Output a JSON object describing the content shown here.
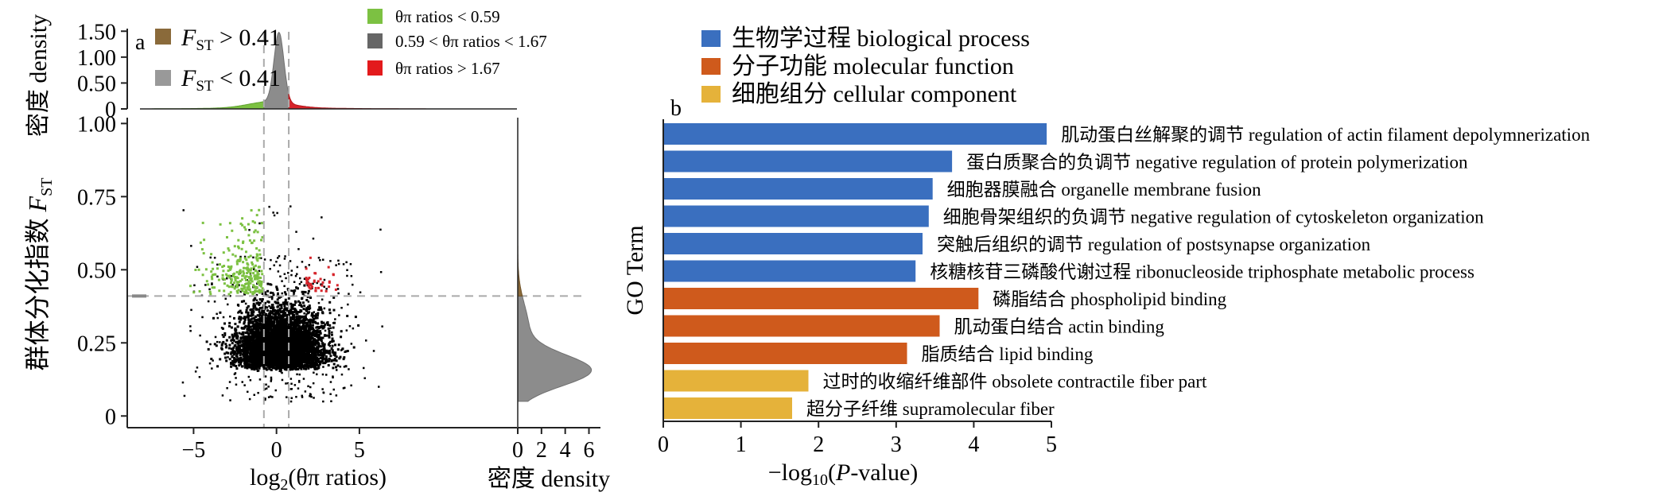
{
  "chart_data": [
    {
      "type": "scatter",
      "panel_label": "a",
      "xlabel_main": "log",
      "xlabel_sub": "2",
      "xlabel_rest": "(θπ ratios)",
      "ylabel_cn": "群体分化指数 ",
      "ylabel_f": "F",
      "ylabel_sub": "ST",
      "top_density_ylabel": "密度 density",
      "right_density_xlabel": "密度 density",
      "x_ticks": [
        "−5",
        "0",
        "5"
      ],
      "x_tick_values": [
        -5,
        0,
        5
      ],
      "y_ticks": [
        "0",
        "0.25",
        "0.50",
        "0.75",
        "1.00"
      ],
      "y_tick_values": [
        0,
        0.25,
        0.5,
        0.75,
        1.0
      ],
      "top_density_ticks": [
        "0",
        "0.50",
        "1.00",
        "1.50"
      ],
      "top_density_tick_values": [
        0,
        0.5,
        1.0,
        1.5
      ],
      "right_density_ticks": [
        "0",
        "2",
        "4",
        "6"
      ],
      "right_density_tick_values": [
        0,
        2,
        4,
        6
      ],
      "xlim": [
        -9,
        14.5
      ],
      "ylim": [
        -0.04,
        1.02
      ],
      "thresholds": {
        "fst": 0.41,
        "theta_low": -0.76,
        "theta_high": 0.74
      },
      "legend_fst": [
        {
          "label_f": "F",
          "label_sub": "ST",
          "label_rest": " > 0.41",
          "color": "#8a6a3a"
        },
        {
          "label_f": "F",
          "label_sub": "ST",
          "label_rest": " < 0.41",
          "color": "#999999"
        }
      ],
      "legend_theta": [
        {
          "label": "θπ ratios < 0.59",
          "color": "#7cc142"
        },
        {
          "label": "0.59 < θπ ratios < 1.67",
          "color": "#666666"
        },
        {
          "label": "θπ ratios > 1.67",
          "color": "#e31a1c"
        }
      ],
      "colors": {
        "bulk": "#000000",
        "green": "#7cc142",
        "red": "#d6242a",
        "density_gray": "#8c8c8c",
        "guide": "#aaaaaa"
      }
    },
    {
      "type": "bar",
      "orientation": "horizontal",
      "panel_label": "b",
      "xlabel_pre": "−log",
      "xlabel_sub": "10",
      "xlabel_mid": "(",
      "xlabel_p": "P",
      "xlabel_post": "-value)",
      "ylabel": "GO Term",
      "xlim": [
        0,
        5
      ],
      "x_ticks": [
        "0",
        "1",
        "2",
        "3",
        "4",
        "5"
      ],
      "x_tick_values": [
        0,
        1,
        2,
        3,
        4,
        5
      ],
      "legend": [
        {
          "label": "生物学过程 biological process",
          "color": "#3a6fbf"
        },
        {
          "label": "分子功能 molecular function",
          "color": "#cf5a1c"
        },
        {
          "label": "细胞组分 cellular component",
          "color": "#e5b23a"
        }
      ],
      "categories": [
        "肌动蛋白丝解聚的调节 regulation of actin filament depolymnerization",
        "蛋白质聚合的负调节 negative regulation of protein polymerization",
        "细胞器膜融合 organelle membrane fusion",
        "细胞骨架组织的负调节 negative regulation of cytoskeleton organization",
        "突触后组织的调节 regulation of postsynapse organization",
        "核糖核苷三磷酸代谢过程 ribonucleoside triphosphate metabolic process",
        "磷脂结合 phospholipid binding",
        "肌动蛋白结合 actin binding",
        "脂质结合 lipid binding",
        "过时的收缩纤维部件 obsolete contractile fiber part",
        "超分子纤维 supramolecular fiber"
      ],
      "values": [
        4.94,
        3.72,
        3.47,
        3.42,
        3.34,
        3.25,
        4.06,
        3.56,
        3.14,
        1.87,
        1.66
      ],
      "groups": [
        0,
        0,
        0,
        0,
        0,
        0,
        1,
        1,
        1,
        2,
        2
      ]
    }
  ]
}
